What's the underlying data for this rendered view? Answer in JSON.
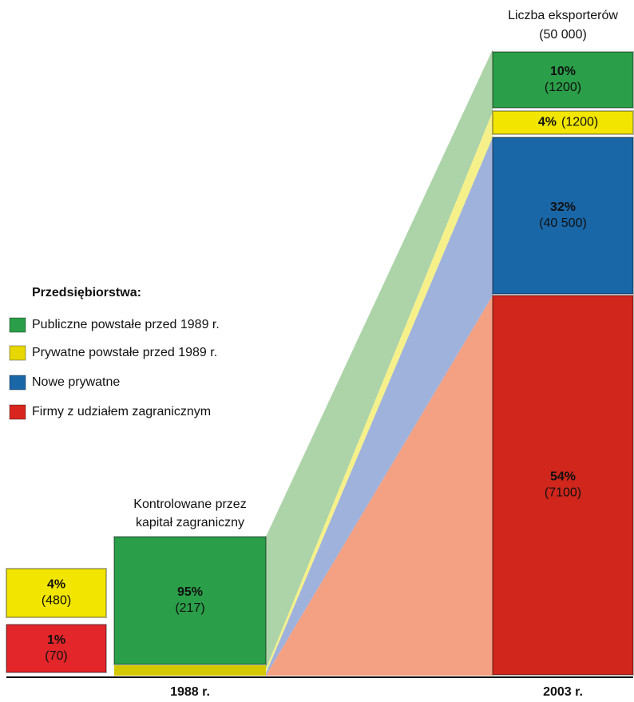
{
  "legend": {
    "title": "Przedsiębiorstwa:",
    "items": [
      {
        "label": "Publiczne powstałe przed 1989 r.",
        "color": "#2a9e48"
      },
      {
        "label": "Prywatne powstałe przed 1989 r.",
        "color": "#e6d800"
      },
      {
        "label": "Nowe prywatne",
        "color": "#1a67a8"
      },
      {
        "label": "Firmy z udziałem zagranicznym",
        "color": "#d8261e"
      }
    ]
  },
  "year_1988": {
    "label": "1988 r.",
    "note": [
      "Kontrolowane przez",
      "kapitał zagraniczny"
    ],
    "blocks": [
      {
        "percent": "4%",
        "count": "(480)",
        "color": "#f2e600"
      },
      {
        "percent": "1%",
        "count": "(70)",
        "color": "#e3262a"
      },
      {
        "percent": "95%",
        "count": "(217)",
        "color": "#2a9e48"
      }
    ]
  },
  "year_2003": {
    "label": "2003 r.",
    "header": [
      "Liczba eksporterów",
      "(50 000)"
    ],
    "blocks": [
      {
        "percent": "10%",
        "count": "(1200)",
        "color": "#2a9e48"
      },
      {
        "percent": "4%",
        "count": "(1200)",
        "color": "#f2e600"
      },
      {
        "percent": "32%",
        "count": "(40 500)",
        "color": "#1a67a8"
      },
      {
        "percent": "54%",
        "count": "(7100)",
        "color": "#d0261c"
      }
    ]
  }
}
